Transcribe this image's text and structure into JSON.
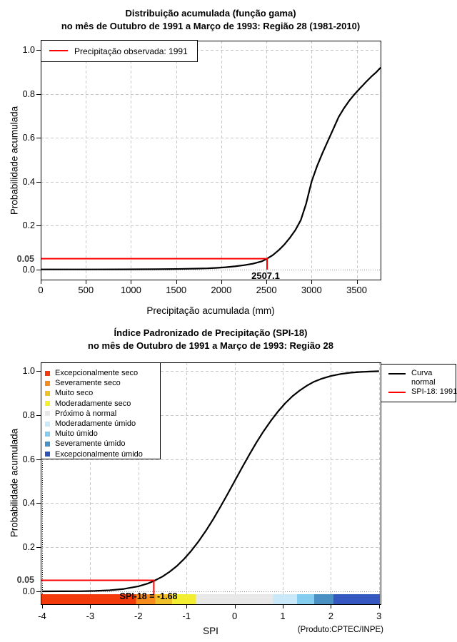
{
  "page": {
    "background": "#ffffff",
    "grid_color": "#c8c8c8",
    "box_color": "#000000"
  },
  "chart_data": [
    {
      "type": "line",
      "title": "Distribuição acumulada (função gama)",
      "subtitle": "no mês de Outubro de 1991 a Março de 1993: Região 28 (1981-2010)",
      "xlabel": "Precipitação acumulada (mm)",
      "ylabel": "Probabilidade acumulada",
      "xlim": [
        0,
        3765
      ],
      "ylim": [
        0,
        1.04
      ],
      "grid": true,
      "legend_position": "top-left",
      "x_ticks": [
        {
          "v": 0,
          "label": "0"
        },
        {
          "v": 500,
          "label": "500"
        },
        {
          "v": 1000,
          "label": "1000"
        },
        {
          "v": 1500,
          "label": "1500"
        },
        {
          "v": 2000,
          "label": "2000"
        },
        {
          "v": 2500,
          "label": "2500"
        },
        {
          "v": 3000,
          "label": "3000"
        },
        {
          "v": 3500,
          "label": "3500"
        }
      ],
      "y_ticks": [
        {
          "v": 0.0,
          "label": "0.0"
        },
        {
          "v": 0.2,
          "label": "0.2"
        },
        {
          "v": 0.4,
          "label": "0.4"
        },
        {
          "v": 0.6,
          "label": "0.6"
        },
        {
          "v": 0.8,
          "label": "0.8"
        },
        {
          "v": 1.0,
          "label": "1.0"
        }
      ],
      "y_tick_special": {
        "v": 0.05,
        "label": "0.05"
      },
      "legend": {
        "items": [
          {
            "label": "Precipitação observada: 1991",
            "color": "#ff0000"
          }
        ]
      },
      "series": [
        {
          "name": "Distribuição acumulada (função gama)",
          "color": "#000000",
          "x": [
            0,
            300,
            600,
            900,
            1100,
            1300,
            1500,
            1700,
            1850,
            1950,
            2050,
            2150,
            2250,
            2350,
            2450,
            2507.1,
            2570,
            2640,
            2700,
            2760,
            2820,
            2880,
            2940,
            3000,
            3060,
            3120,
            3180,
            3240,
            3300,
            3360,
            3420,
            3480,
            3540,
            3600,
            3660,
            3720,
            3765
          ],
          "y": [
            0.001,
            0.001,
            0.001,
            0.0012,
            0.0015,
            0.002,
            0.003,
            0.0045,
            0.006,
            0.008,
            0.011,
            0.015,
            0.02,
            0.027,
            0.038,
            0.05,
            0.066,
            0.09,
            0.115,
            0.145,
            0.18,
            0.225,
            0.3,
            0.4,
            0.47,
            0.53,
            0.585,
            0.64,
            0.695,
            0.735,
            0.77,
            0.8,
            0.827,
            0.853,
            0.878,
            0.9,
            0.92
          ]
        }
      ],
      "observed": {
        "x": 2507.1,
        "y": 0.05,
        "annotation": "2507.1",
        "color": "#ff0000"
      }
    },
    {
      "type": "line",
      "title": "Índice Padronizado de Precipitação (SPI-18)",
      "subtitle": "no mês de Outubro de 1991 a Março de 1993: Região 28",
      "xlabel": "SPI",
      "ylabel": "Probabilidade acumulada",
      "xlim": [
        -4.05,
        3.05
      ],
      "ylim": [
        0,
        1.04
      ],
      "grid": true,
      "credit": "(Produto:CPTEC/INPE)",
      "x_ticks": [
        {
          "v": -4,
          "label": "-4"
        },
        {
          "v": -3,
          "label": "-3"
        },
        {
          "v": -2,
          "label": "-2"
        },
        {
          "v": -1,
          "label": "-1"
        },
        {
          "v": 0,
          "label": "0"
        },
        {
          "v": 1,
          "label": "1"
        },
        {
          "v": 2,
          "label": "2"
        },
        {
          "v": 3,
          "label": "3"
        }
      ],
      "y_ticks": [
        {
          "v": 0.0,
          "label": "0.0"
        },
        {
          "v": 0.2,
          "label": "0.2"
        },
        {
          "v": 0.4,
          "label": "0.4"
        },
        {
          "v": 0.6,
          "label": "0.6"
        },
        {
          "v": 0.8,
          "label": "0.8"
        },
        {
          "v": 1.0,
          "label": "1.0"
        }
      ],
      "y_tick_special": {
        "v": 0.05,
        "label": "0.05"
      },
      "series": [
        {
          "name": "Curva normal",
          "color": "#000000",
          "x": [
            -4,
            -3.6,
            -3.2,
            -2.9,
            -2.6,
            -2.3,
            -2.0,
            -1.8,
            -1.68,
            -1.5,
            -1.35,
            -1.2,
            -1.05,
            -0.9,
            -0.75,
            -0.6,
            -0.45,
            -0.3,
            -0.15,
            0,
            0.15,
            0.3,
            0.45,
            0.6,
            0.75,
            0.9,
            1.05,
            1.2,
            1.35,
            1.5,
            1.65,
            1.8,
            2.0,
            2.2,
            2.4,
            2.6,
            2.8,
            3.0
          ],
          "y": [
            0.0001,
            0.0002,
            0.0007,
            0.0019,
            0.0047,
            0.011,
            0.023,
            0.036,
            0.047,
            0.067,
            0.089,
            0.115,
            0.147,
            0.184,
            0.227,
            0.274,
            0.326,
            0.382,
            0.44,
            0.5,
            0.56,
            0.618,
            0.674,
            0.726,
            0.773,
            0.816,
            0.853,
            0.885,
            0.911,
            0.933,
            0.951,
            0.964,
            0.977,
            0.986,
            0.992,
            0.995,
            0.997,
            0.9987
          ]
        }
      ],
      "observed": {
        "x": -1.68,
        "y": 0.05,
        "annotation": "SPI-18 = -1.68",
        "color": "#ff0000"
      },
      "categories_legend": [
        {
          "label": "Excepcionalmente seco",
          "color": "#f23a0a"
        },
        {
          "label": "Severamente seco",
          "color": "#f78c1e"
        },
        {
          "label": "Muito seco",
          "color": "#efc029"
        },
        {
          "label": "Moderadamente seco",
          "color": "#f4ee33"
        },
        {
          "label": "Próximo à normal",
          "color": "#e8e8e8"
        },
        {
          "label": "Moderadamente úmido",
          "color": "#c9e9f8"
        },
        {
          "label": "Muito úmido",
          "color": "#85cdee"
        },
        {
          "label": "Severamente úmido",
          "color": "#4b90c3"
        },
        {
          "label": "Excepcionalmente úmido",
          "color": "#2e55b5"
        }
      ],
      "right_legend": {
        "curve_label_line1": "Curva",
        "curve_label_line2": "normal",
        "curve_color": "#000000",
        "observed_label": "SPI-18: 1991",
        "observed_color": "#ff0000"
      },
      "colorbar": {
        "segments": [
          {
            "from": -4.05,
            "to": -2.05,
            "color": "#f23a0a",
            "label": "Excepcionalmente seco"
          },
          {
            "from": -2.05,
            "to": -1.65,
            "color": "#f78c1e",
            "label": "Severamente seco"
          },
          {
            "from": -1.65,
            "to": -1.3,
            "color": "#efc029",
            "label": "Muito seco"
          },
          {
            "from": -1.3,
            "to": -0.8,
            "color": "#f4ee33",
            "label": "Moderadamente seco"
          },
          {
            "from": -0.8,
            "to": 0.8,
            "color": "#e8e8e8",
            "label": "Próximo à normal"
          },
          {
            "from": 0.8,
            "to": 1.3,
            "color": "#c9e9f8",
            "label": "Moderadamente úmido"
          },
          {
            "from": 1.3,
            "to": 1.65,
            "color": "#85cdee",
            "label": "Muito úmido"
          },
          {
            "from": 1.65,
            "to": 2.05,
            "color": "#4b90c3",
            "label": "Severamente úmido"
          },
          {
            "from": 2.05,
            "to": 3.05,
            "color": "#3457c0",
            "label": "Excepcionalmente úmido"
          }
        ]
      }
    }
  ]
}
